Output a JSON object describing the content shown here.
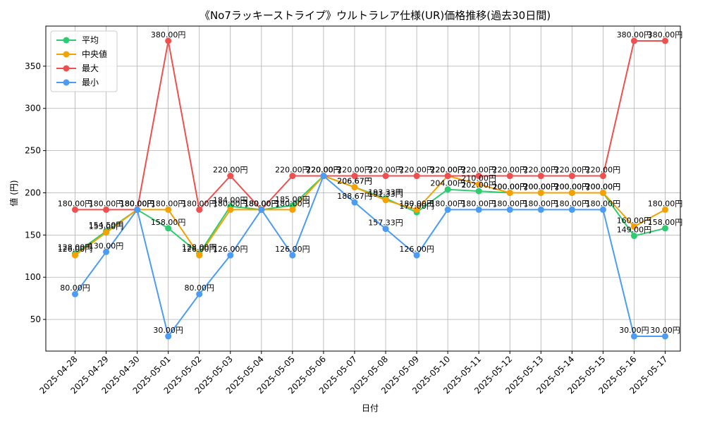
{
  "chart_data": {
    "type": "line",
    "title": "《No7ラッキーストライプ》ウルトラレア仕様(UR)価格推移(過去30日間)",
    "xlabel": "日付",
    "ylabel": "値 (円)",
    "x": [
      "2025-04-28",
      "2025-04-29",
      "2025-04-30",
      "2025-05-01",
      "2025-05-02",
      "2025-05-03",
      "2025-05-04",
      "2025-05-05",
      "2025-05-06",
      "2025-05-07",
      "2025-05-08",
      "2025-05-09",
      "2025-05-10",
      "2025-05-11",
      "2025-05-12",
      "2025-05-13",
      "2025-05-14",
      "2025-05-15",
      "2025-05-16",
      "2025-05-17"
    ],
    "yticks": [
      50,
      100,
      150,
      200,
      250,
      300,
      350
    ],
    "ylim": [
      12.5,
      397.5
    ],
    "grid": true,
    "legend": "top-left",
    "label_suffix": "円",
    "series": [
      {
        "name": "平均",
        "color": "#2ecc71",
        "values": [
          128.0,
          154.5,
          180.0,
          158.0,
          128.0,
          184.0,
          180.0,
          185.0,
          220.0,
          206.67,
          193.33,
          177.0,
          204.0,
          202.0,
          200.0,
          200.0,
          200.0,
          200.0,
          149.0,
          158.0
        ],
        "labels": [
          "128.00",
          "154.50",
          "180.00",
          "158.00",
          "128.00",
          "184.00",
          "180.00",
          "185.00",
          "220.00",
          "206.67",
          "193.33",
          "177.00",
          "204.00",
          "202.00",
          "200.00",
          "200.00",
          "200.00",
          "200.00",
          "149.00",
          "158.00"
        ]
      },
      {
        "name": "中央値",
        "color": "#f5a100",
        "values": [
          126.0,
          153.0,
          180.0,
          180.0,
          126.0,
          180.0,
          180.0,
          180.0,
          220.0,
          206.67,
          191.33,
          180.0,
          220.0,
          210.0,
          200.0,
          200.0,
          200.0,
          200.0,
          160.0,
          180.0
        ],
        "labels": [
          "126.00",
          "153.00",
          "180.00",
          "180.00",
          "126.00",
          "180.00",
          "180.00",
          "180.00",
          "220.00",
          "206.67",
          "191.33",
          "180.00",
          "220.00",
          "210.00",
          "200.00",
          "200.00",
          "200.00",
          "200.00",
          "160.00",
          "180.00"
        ]
      },
      {
        "name": "最大",
        "color": "#ef4f4f",
        "values": [
          180.0,
          180.0,
          180.0,
          380.0,
          180.0,
          220.0,
          180.0,
          220.0,
          220.0,
          220.0,
          220.0,
          220.0,
          220.0,
          220.0,
          220.0,
          220.0,
          220.0,
          220.0,
          380.0,
          380.0
        ],
        "labels": [
          "180.00",
          "180.00",
          "180.00",
          "380.00",
          "180.00",
          "220.00",
          "180.00",
          "220.00",
          "220.00",
          "220.00",
          "220.00",
          "220.00",
          "220.00",
          "220.00",
          "220.00",
          "220.00",
          "220.00",
          "220.00",
          "380.00",
          "380.00"
        ]
      },
      {
        "name": "最小",
        "color": "#4b9cf5",
        "values": [
          80.0,
          130.0,
          180.0,
          30.0,
          80.0,
          126.0,
          180.0,
          126.0,
          220.0,
          188.67,
          157.33,
          126.0,
          180.0,
          180.0,
          180.0,
          180.0,
          180.0,
          180.0,
          30.0,
          30.0
        ],
        "labels": [
          "80.00",
          "130.00",
          "180.00",
          "30.00",
          "80.00",
          "126.00",
          "180.00",
          "126.00",
          "220.00",
          "188.67",
          "157.33",
          "126.00",
          "180.00",
          "180.00",
          "180.00",
          "180.00",
          "180.00",
          "180.00",
          "30.00",
          "30.00"
        ]
      }
    ]
  }
}
